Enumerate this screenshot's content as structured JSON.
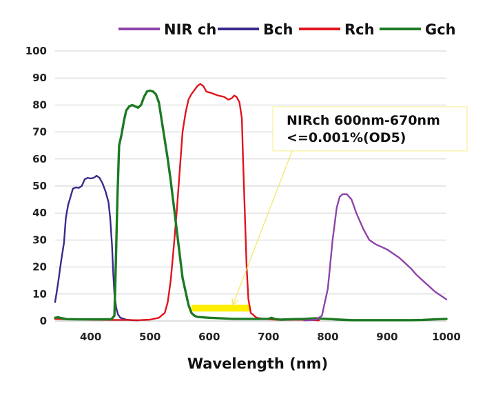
{
  "chart_data": {
    "type": "line",
    "title": "",
    "xlabel": "Wavelength (nm)",
    "ylabel": "",
    "xlim": [
      340,
      1000
    ],
    "ylim": [
      0,
      100
    ],
    "x_ticks": [
      400,
      500,
      600,
      700,
      800,
      900,
      1000
    ],
    "y_ticks": [
      0,
      10,
      20,
      30,
      40,
      50,
      60,
      70,
      80,
      90,
      100
    ],
    "legend_position": "top",
    "series": [
      {
        "name": "NIR ch",
        "color": "#8e44a8",
        "points": [
          [
            760,
            0.2
          ],
          [
            770,
            0.3
          ],
          [
            780,
            0.5
          ],
          [
            790,
            2
          ],
          [
            800,
            12
          ],
          [
            808,
            30
          ],
          [
            815,
            42
          ],
          [
            820,
            46
          ],
          [
            825,
            47
          ],
          [
            832,
            47
          ],
          [
            840,
            45
          ],
          [
            848,
            40
          ],
          [
            860,
            34
          ],
          [
            870,
            30
          ],
          [
            880,
            28.5
          ],
          [
            890,
            27.5
          ],
          [
            900,
            26.5
          ],
          [
            910,
            25
          ],
          [
            920,
            23.5
          ],
          [
            930,
            21.5
          ],
          [
            940,
            19.5
          ],
          [
            950,
            17
          ],
          [
            960,
            15
          ],
          [
            970,
            13
          ],
          [
            980,
            11
          ],
          [
            990,
            9.5
          ],
          [
            1000,
            8
          ]
        ]
      },
      {
        "name": "Bch",
        "color": "#3a2a8c",
        "points": [
          [
            340,
            7
          ],
          [
            345,
            14
          ],
          [
            350,
            22
          ],
          [
            355,
            29
          ],
          [
            358,
            38
          ],
          [
            362,
            43
          ],
          [
            366,
            46
          ],
          [
            370,
            49
          ],
          [
            375,
            49.5
          ],
          [
            380,
            49.3
          ],
          [
            385,
            50
          ],
          [
            390,
            52.5
          ],
          [
            395,
            53
          ],
          [
            400,
            52.8
          ],
          [
            405,
            53
          ],
          [
            410,
            53.8
          ],
          [
            415,
            53
          ],
          [
            420,
            51
          ],
          [
            425,
            48
          ],
          [
            430,
            44
          ],
          [
            433,
            38
          ],
          [
            436,
            28
          ],
          [
            438,
            18
          ],
          [
            440,
            10
          ],
          [
            443,
            5
          ],
          [
            446,
            2.5
          ],
          [
            450,
            1.2
          ],
          [
            460,
            0.5
          ],
          [
            470,
            0.3
          ],
          [
            480,
            0.2
          ]
        ]
      },
      {
        "name": "Rch",
        "color": "#e0141e",
        "points": [
          [
            340,
            0.8
          ],
          [
            360,
            0.6
          ],
          [
            400,
            0.5
          ],
          [
            440,
            0.4
          ],
          [
            460,
            0.4
          ],
          [
            480,
            0.3
          ],
          [
            500,
            0.5
          ],
          [
            515,
            1.2
          ],
          [
            525,
            3
          ],
          [
            530,
            7
          ],
          [
            535,
            15
          ],
          [
            540,
            27
          ],
          [
            545,
            40
          ],
          [
            550,
            55
          ],
          [
            555,
            70
          ],
          [
            560,
            77
          ],
          [
            565,
            82
          ],
          [
            570,
            84
          ],
          [
            575,
            85.5
          ],
          [
            580,
            87
          ],
          [
            585,
            87.8
          ],
          [
            590,
            87
          ],
          [
            595,
            85
          ],
          [
            605,
            84.3
          ],
          [
            615,
            83.5
          ],
          [
            625,
            83
          ],
          [
            632,
            82
          ],
          [
            638,
            82.5
          ],
          [
            642,
            83.5
          ],
          [
            646,
            83
          ],
          [
            651,
            81
          ],
          [
            655,
            75
          ],
          [
            657,
            60
          ],
          [
            660,
            40
          ],
          [
            663,
            20
          ],
          [
            666,
            8
          ],
          [
            670,
            3
          ],
          [
            680,
            1.2
          ],
          [
            700,
            0.6
          ],
          [
            720,
            0.4
          ],
          [
            750,
            0.5
          ],
          [
            770,
            0.4
          ],
          [
            785,
            0.2
          ]
        ]
      },
      {
        "name": "Gch",
        "color": "#1d7a22",
        "points": [
          [
            340,
            1.2
          ],
          [
            345,
            1.4
          ],
          [
            350,
            1.1
          ],
          [
            360,
            0.7
          ],
          [
            380,
            0.6
          ],
          [
            400,
            0.6
          ],
          [
            420,
            0.6
          ],
          [
            435,
            0.7
          ],
          [
            440,
            2
          ],
          [
            442,
            18
          ],
          [
            445,
            45
          ],
          [
            448,
            65
          ],
          [
            452,
            69
          ],
          [
            456,
            74
          ],
          [
            460,
            78
          ],
          [
            465,
            79.5
          ],
          [
            470,
            80
          ],
          [
            475,
            79.5
          ],
          [
            480,
            79
          ],
          [
            485,
            80
          ],
          [
            490,
            83
          ],
          [
            495,
            85
          ],
          [
            500,
            85.3
          ],
          [
            505,
            85
          ],
          [
            510,
            84
          ],
          [
            515,
            81
          ],
          [
            520,
            74
          ],
          [
            525,
            67
          ],
          [
            530,
            60
          ],
          [
            535,
            52
          ],
          [
            540,
            43
          ],
          [
            545,
            34
          ],
          [
            550,
            25
          ],
          [
            555,
            16
          ],
          [
            560,
            11
          ],
          [
            565,
            6
          ],
          [
            570,
            3
          ],
          [
            575,
            2
          ],
          [
            580,
            1.5
          ],
          [
            600,
            1.2
          ],
          [
            620,
            1
          ],
          [
            640,
            0.8
          ],
          [
            660,
            0.8
          ],
          [
            680,
            0.8
          ],
          [
            700,
            0.8
          ],
          [
            705,
            1.2
          ],
          [
            710,
            0.8
          ],
          [
            720,
            0.5
          ],
          [
            740,
            0.7
          ],
          [
            760,
            0.8
          ],
          [
            780,
            1
          ],
          [
            800,
            0.8
          ],
          [
            820,
            0.5
          ],
          [
            840,
            0.3
          ],
          [
            860,
            0.3
          ],
          [
            880,
            0.3
          ],
          [
            900,
            0.3
          ],
          [
            920,
            0.3
          ],
          [
            940,
            0.3
          ],
          [
            960,
            0.4
          ],
          [
            980,
            0.6
          ],
          [
            1000,
            0.8
          ]
        ]
      }
    ],
    "highlight_band": {
      "x_start": 570,
      "x_end": 670,
      "y_low": 3.5,
      "y_high": 6,
      "color": "#ffee00"
    },
    "annotation": {
      "lines": [
        "NIRch 600nm-670nm",
        "<=0.001%(OD5)"
      ],
      "arrow_target": [
        640,
        5
      ],
      "border_color": "#f5ee80"
    }
  }
}
